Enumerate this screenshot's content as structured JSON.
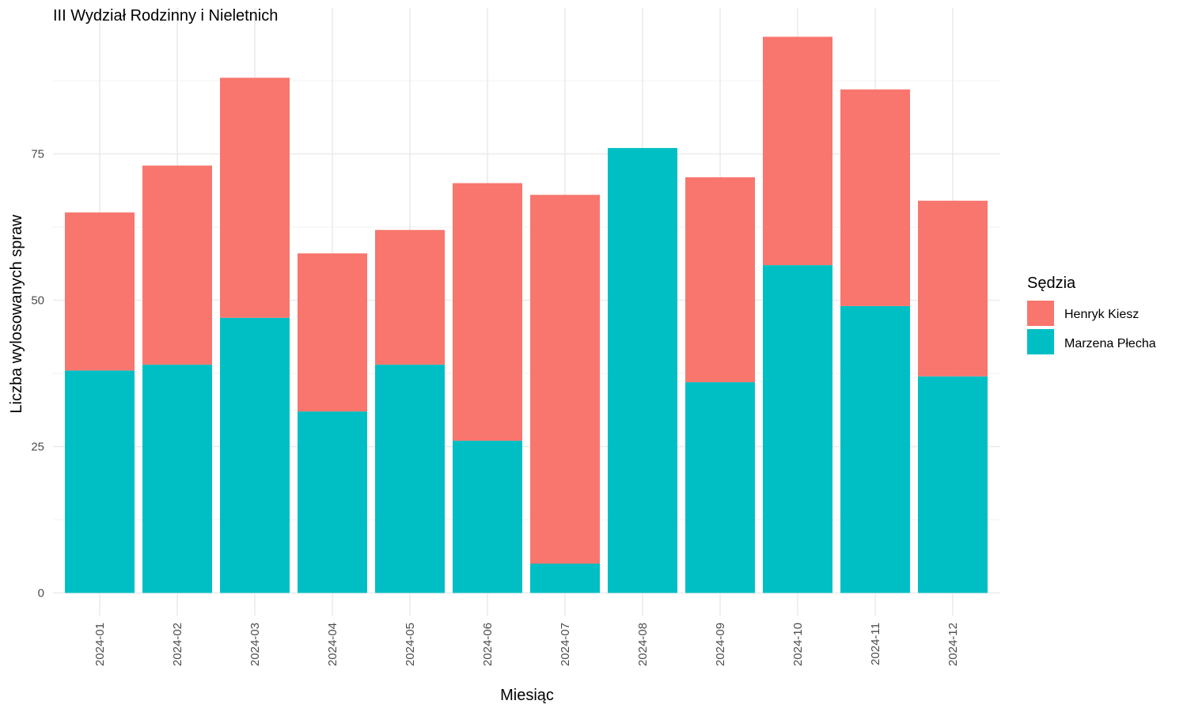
{
  "chart_data": {
    "type": "bar",
    "stacked": true,
    "title": "III Wydział Rodzinny i Nieletnich",
    "xlabel": "Miesiąc",
    "ylabel": "Liczba wylosowanych spraw",
    "categories": [
      "2024-01",
      "2024-02",
      "2024-03",
      "2024-04",
      "2024-05",
      "2024-06",
      "2024-07",
      "2024-08",
      "2024-09",
      "2024-10",
      "2024-11",
      "2024-12"
    ],
    "series": [
      {
        "name": "Marzena Płecha",
        "color": "#00BFC4",
        "values": [
          38,
          39,
          47,
          31,
          39,
          26,
          5,
          76,
          36,
          56,
          49,
          37
        ]
      },
      {
        "name": "Henryk Kiesz",
        "color": "#F8766D",
        "values": [
          27,
          34,
          41,
          27,
          23,
          44,
          63,
          0,
          35,
          39,
          37,
          30
        ]
      }
    ],
    "ylim": [
      0,
      100
    ],
    "yticks": [
      0,
      25,
      50,
      75
    ],
    "grid": true,
    "legend": {
      "title": "Sędzia",
      "position": "right",
      "entries": [
        "Henryk Kiesz",
        "Marzena Płecha"
      ]
    }
  }
}
